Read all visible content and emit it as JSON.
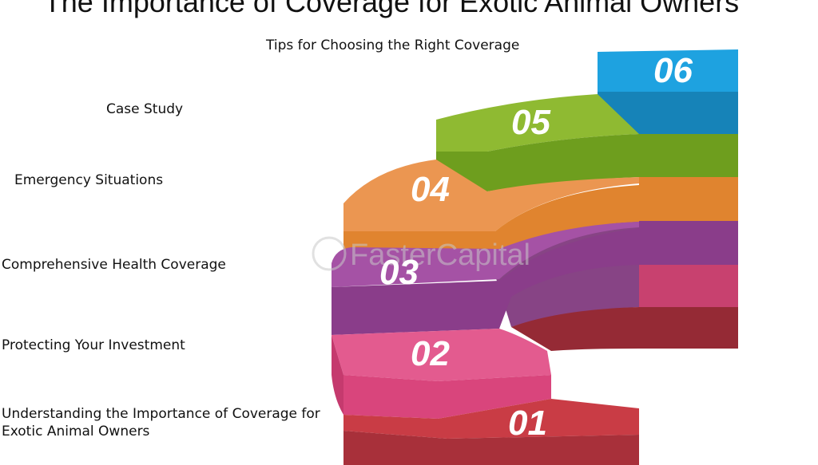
{
  "title": "The Importance of Coverage for Exotic Animal Owners",
  "steps": [
    {
      "number": "01",
      "label_lines": [
        "Understanding the Importance of Coverage for",
        "Exotic Animal Owners"
      ],
      "color": "#b8333a"
    },
    {
      "number": "02",
      "label_lines": [
        "Protecting Your Investment"
      ],
      "color": "#d9457c"
    },
    {
      "number": "03",
      "label_lines": [
        "Comprehensive Health Coverage"
      ],
      "color": "#8e3e8e"
    },
    {
      "number": "04",
      "label_lines": [
        "Emergency Situations"
      ],
      "color": "#e8893a"
    },
    {
      "number": "05",
      "label_lines": [
        "Case Study"
      ],
      "color": "#86ad2c"
    },
    {
      "number": "06",
      "label_lines": [
        "Tips for Choosing the Right Coverage"
      ],
      "color": "#1ea2e0"
    }
  ],
  "watermark": "FasterCapital"
}
